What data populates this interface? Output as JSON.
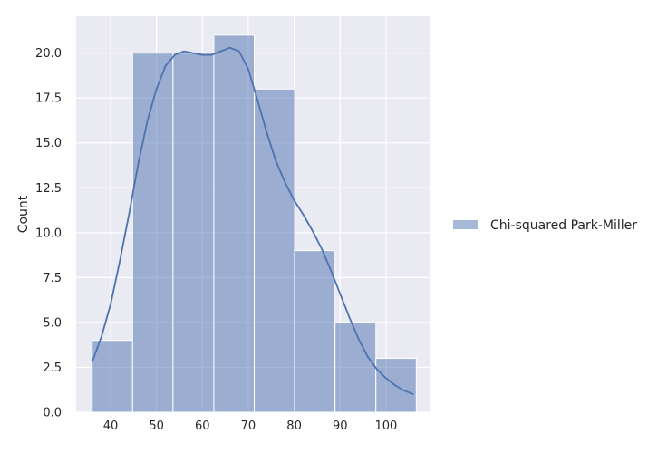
{
  "chart_data": {
    "type": "bar",
    "subtype": "histogram-with-kde",
    "xlabel": "",
    "ylabel": "Count",
    "xlim": [
      32.5,
      109.5
    ],
    "ylim": [
      0,
      22.05
    ],
    "xticks": [
      40,
      50,
      60,
      70,
      80,
      90,
      100
    ],
    "yticks": [
      0.0,
      2.5,
      5.0,
      7.5,
      10.0,
      12.5,
      15.0,
      17.5,
      20.0
    ],
    "ytick_labels": [
      "0.0",
      "2.5",
      "5.0",
      "7.5",
      "10.0",
      "12.5",
      "15.0",
      "17.5",
      "20.0"
    ],
    "grid": true,
    "legend_position": "right",
    "series": [
      {
        "name": "Chi-squared Park-Miller",
        "color": "#4c72b0",
        "bins": [
          {
            "x0": 36.0,
            "x1": 44.8,
            "count": 4
          },
          {
            "x0": 44.8,
            "x1": 53.6,
            "count": 20
          },
          {
            "x0": 53.6,
            "x1": 62.5,
            "count": 20
          },
          {
            "x0": 62.5,
            "x1": 71.3,
            "count": 21
          },
          {
            "x0": 71.3,
            "x1": 80.1,
            "count": 18
          },
          {
            "x0": 80.1,
            "x1": 88.9,
            "count": 9
          },
          {
            "x0": 88.9,
            "x1": 97.8,
            "count": 5
          },
          {
            "x0": 97.8,
            "x1": 106.6,
            "count": 3
          }
        ],
        "kde": [
          [
            36.0,
            2.8
          ],
          [
            38.0,
            4.2
          ],
          [
            40.0,
            6.0
          ],
          [
            42.0,
            8.4
          ],
          [
            44.0,
            11.0
          ],
          [
            46.0,
            13.8
          ],
          [
            48.0,
            16.2
          ],
          [
            50.0,
            18.0
          ],
          [
            52.0,
            19.3
          ],
          [
            54.0,
            19.9
          ],
          [
            56.0,
            20.1
          ],
          [
            58.0,
            20.0
          ],
          [
            60.0,
            19.9
          ],
          [
            62.0,
            19.9
          ],
          [
            64.0,
            20.1
          ],
          [
            66.0,
            20.3
          ],
          [
            68.0,
            20.1
          ],
          [
            70.0,
            19.1
          ],
          [
            72.0,
            17.4
          ],
          [
            74.0,
            15.6
          ],
          [
            76.0,
            14.0
          ],
          [
            78.0,
            12.8
          ],
          [
            80.0,
            11.8
          ],
          [
            82.0,
            11.0
          ],
          [
            84.0,
            10.1
          ],
          [
            86.0,
            9.1
          ],
          [
            88.0,
            7.9
          ],
          [
            90.0,
            6.6
          ],
          [
            92.0,
            5.3
          ],
          [
            94.0,
            4.1
          ],
          [
            96.0,
            3.1
          ],
          [
            98.0,
            2.4
          ],
          [
            100.0,
            1.9
          ],
          [
            102.0,
            1.5
          ],
          [
            104.0,
            1.2
          ],
          [
            106.0,
            1.0
          ]
        ]
      }
    ]
  }
}
